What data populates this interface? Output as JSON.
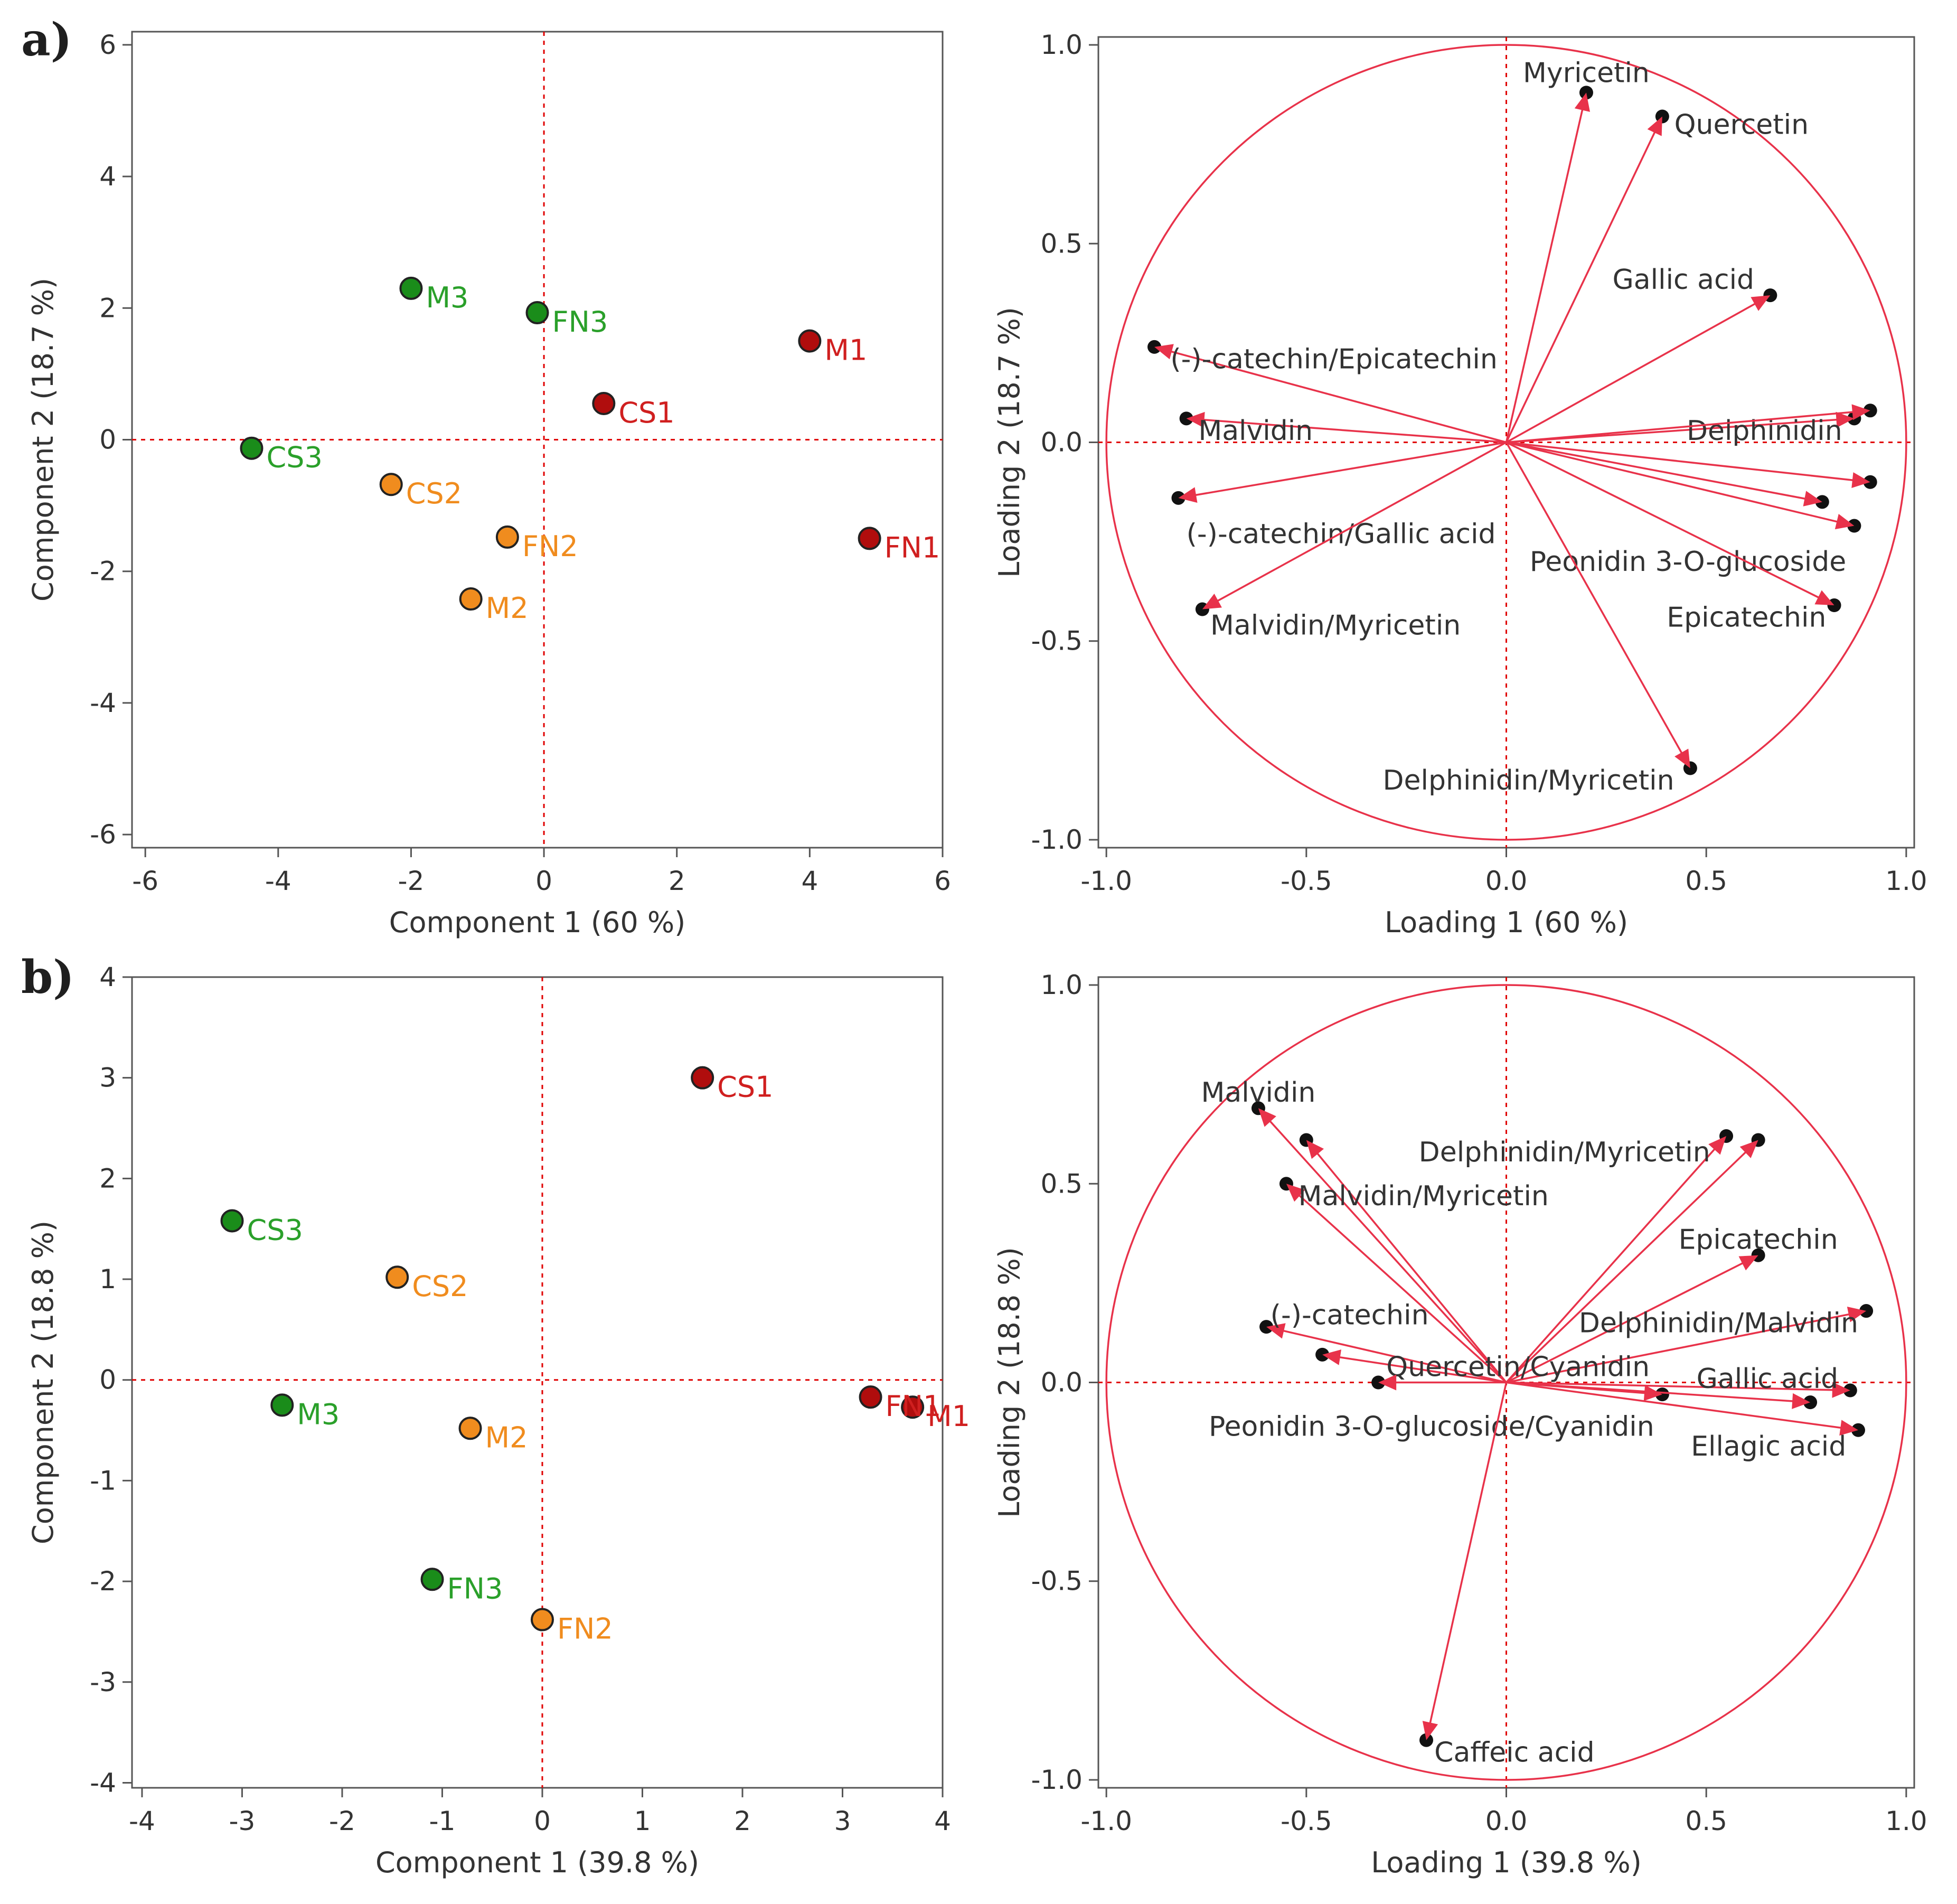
{
  "panels": [
    {
      "letter": "a)"
    },
    {
      "letter": "b)"
    }
  ],
  "colors": {
    "red": "#b00d0d",
    "orange": "#f08c1e",
    "green": "#1a8c1a",
    "red_label": "#d01f1f",
    "orange_label": "#f08c1e",
    "green_label": "#2aa02a",
    "arrow": "#e8324a",
    "axis": "#555555",
    "zero_line": "#e00000"
  },
  "chart_data": [
    {
      "id": "a-scores",
      "type": "scatter",
      "title": "",
      "xlabel": "Component 1  (60 %)",
      "ylabel": "Component 2  (18.7 %)",
      "xlim": [
        -6.2,
        6.0
      ],
      "ylim": [
        -6.2,
        6.2
      ],
      "xticks": [
        -6,
        -4,
        -2,
        0,
        2,
        4,
        6
      ],
      "yticks": [
        -6,
        -4,
        -2,
        0,
        2,
        4,
        6
      ],
      "tick_labels_x": [
        "-6",
        "-4",
        "-2",
        "0",
        "2",
        "4",
        "6"
      ],
      "tick_labels_y": [
        "-6",
        "-4",
        "-2",
        "0",
        "2",
        "4",
        "6"
      ],
      "points": [
        {
          "label": "M3",
          "x": -2.0,
          "y": 2.3,
          "color": "green"
        },
        {
          "label": "FN3",
          "x": -0.1,
          "y": 1.93,
          "color": "green"
        },
        {
          "label": "CS3",
          "x": -4.4,
          "y": -0.13,
          "color": "green"
        },
        {
          "label": "M1",
          "x": 4.0,
          "y": 1.5,
          "color": "red"
        },
        {
          "label": "CS1",
          "x": 0.9,
          "y": 0.55,
          "color": "red"
        },
        {
          "label": "FN1",
          "x": 4.9,
          "y": -1.5,
          "color": "red"
        },
        {
          "label": "CS2",
          "x": -2.3,
          "y": -0.68,
          "color": "orange"
        },
        {
          "label": "FN2",
          "x": -0.55,
          "y": -1.48,
          "color": "orange"
        },
        {
          "label": "M2",
          "x": -1.1,
          "y": -2.42,
          "color": "orange"
        }
      ]
    },
    {
      "id": "a-loadings",
      "type": "scatter",
      "title": "",
      "xlabel": "Loading 1  (60 %)",
      "ylabel": "Loading 2  (18.7 %)",
      "xlim": [
        -1.02,
        1.02
      ],
      "ylim": [
        -1.02,
        1.02
      ],
      "xticks": [
        -1.0,
        -0.5,
        0.0,
        0.5,
        1.0
      ],
      "yticks": [
        -1.0,
        -0.5,
        0.0,
        0.5,
        1.0
      ],
      "tick_labels_x": [
        "-1.0",
        "-0.5",
        "0.0",
        "0.5",
        "1.0"
      ],
      "tick_labels_y": [
        "-1.0",
        "-0.5",
        "0.0",
        "0.5",
        "1.0"
      ],
      "vectors": [
        {
          "label": "Myricetin",
          "x": 0.2,
          "y": 0.88,
          "lx": 0.2,
          "ly": 0.93,
          "anchor": "middle"
        },
        {
          "label": "Quercetin",
          "x": 0.39,
          "y": 0.82,
          "lx": 0.42,
          "ly": 0.8,
          "anchor": "start"
        },
        {
          "label": "Gallic acid",
          "x": 0.66,
          "y": 0.37,
          "lx": 0.62,
          "ly": 0.41,
          "anchor": "end"
        },
        {
          "label": "(-)-catechin/Epicatechin",
          "x": -0.88,
          "y": 0.24,
          "lx": -0.84,
          "ly": 0.21,
          "anchor": "start"
        },
        {
          "label": "Malvidin",
          "x": -0.8,
          "y": 0.06,
          "lx": -0.77,
          "ly": 0.03,
          "anchor": "start"
        },
        {
          "label": "Delphinidin",
          "x": 0.87,
          "y": 0.06,
          "lx": 0.84,
          "ly": 0.03,
          "anchor": "end"
        },
        {
          "label": "",
          "x": 0.91,
          "y": 0.08,
          "lx": 0,
          "ly": 0,
          "anchor": "start"
        },
        {
          "label": "",
          "x": 0.91,
          "y": -0.1,
          "lx": 0,
          "ly": 0,
          "anchor": "start"
        },
        {
          "label": "",
          "x": 0.79,
          "y": -0.15,
          "lx": 0,
          "ly": 0,
          "anchor": "start"
        },
        {
          "label": "Peonidin 3-O-glucoside",
          "x": 0.87,
          "y": -0.21,
          "lx": 0.85,
          "ly": -0.3,
          "anchor": "end"
        },
        {
          "label": "(-)-catechin/Gallic acid",
          "x": -0.82,
          "y": -0.14,
          "lx": -0.8,
          "ly": -0.23,
          "anchor": "start"
        },
        {
          "label": "Epicatechin",
          "x": 0.82,
          "y": -0.41,
          "lx": 0.8,
          "ly": -0.44,
          "anchor": "end"
        },
        {
          "label": "Malvidin/Myricetin",
          "x": -0.76,
          "y": -0.42,
          "lx": -0.74,
          "ly": -0.46,
          "anchor": "start"
        },
        {
          "label": "Delphinidin/Myricetin",
          "x": 0.46,
          "y": -0.82,
          "lx": 0.42,
          "ly": -0.85,
          "anchor": "end"
        }
      ]
    },
    {
      "id": "b-scores",
      "type": "scatter",
      "title": "",
      "xlabel": "Component 1  (39.8 %)",
      "ylabel": "Component 2  (18.8 %)",
      "xlim": [
        -4.1,
        4.0
      ],
      "ylim": [
        -4.05,
        4.0
      ],
      "xticks": [
        -4,
        -3,
        -2,
        -1,
        0,
        1,
        2,
        3,
        4
      ],
      "yticks": [
        -4,
        -3,
        -2,
        -1,
        0,
        1,
        2,
        3,
        4
      ],
      "tick_labels_x": [
        "-4",
        "-3",
        "-2",
        "-1",
        "0",
        "1",
        "2",
        "3",
        "4"
      ],
      "tick_labels_y": [
        "-4",
        "-3",
        "-2",
        "-1",
        "0",
        "1",
        "2",
        "3",
        "4"
      ],
      "points": [
        {
          "label": "CS1",
          "x": 1.6,
          "y": 3.0,
          "color": "red"
        },
        {
          "label": "M1",
          "x": 3.7,
          "y": -0.27,
          "color": "red"
        },
        {
          "label": "FN1",
          "x": 3.28,
          "y": -0.17,
          "color": "red"
        },
        {
          "label": "CS3",
          "x": -3.1,
          "y": 1.58,
          "color": "green"
        },
        {
          "label": "M3",
          "x": -2.6,
          "y": -0.25,
          "color": "green"
        },
        {
          "label": "FN3",
          "x": -1.1,
          "y": -1.98,
          "color": "green"
        },
        {
          "label": "CS2",
          "x": -1.45,
          "y": 1.02,
          "color": "orange"
        },
        {
          "label": "M2",
          "x": -0.72,
          "y": -0.48,
          "color": "orange"
        },
        {
          "label": "FN2",
          "x": 0.0,
          "y": -2.38,
          "color": "orange"
        }
      ]
    },
    {
      "id": "b-loadings",
      "type": "scatter",
      "title": "",
      "xlabel": "Loading 1  (39.8 %)",
      "ylabel": "Loading 2  (18.8 %)",
      "xlim": [
        -1.02,
        1.02
      ],
      "ylim": [
        -1.02,
        1.02
      ],
      "xticks": [
        -1.0,
        -0.5,
        0.0,
        0.5,
        1.0
      ],
      "yticks": [
        -1.0,
        -0.5,
        0.0,
        0.5,
        1.0
      ],
      "tick_labels_x": [
        "-1.0",
        "-0.5",
        "0.0",
        "0.5",
        "1.0"
      ],
      "tick_labels_y": [
        "-1.0",
        "-0.5",
        "0.0",
        "0.5",
        "1.0"
      ],
      "vectors": [
        {
          "label": "Malvidin",
          "x": -0.62,
          "y": 0.69,
          "lx": -0.62,
          "ly": 0.73,
          "anchor": "middle"
        },
        {
          "label": "",
          "x": -0.5,
          "y": 0.61,
          "lx": 0,
          "ly": 0,
          "anchor": "start"
        },
        {
          "label": "Malvidin/Myricetin",
          "x": -0.55,
          "y": 0.5,
          "lx": -0.52,
          "ly": 0.47,
          "anchor": "start"
        },
        {
          "label": "Delphinidin/Myricetin",
          "x": 0.55,
          "y": 0.62,
          "lx": 0.51,
          "ly": 0.58,
          "anchor": "end"
        },
        {
          "label": "",
          "x": 0.63,
          "y": 0.61,
          "lx": 0,
          "ly": 0,
          "anchor": "start"
        },
        {
          "label": "Epicatechin",
          "x": 0.63,
          "y": 0.32,
          "lx": 0.63,
          "ly": 0.36,
          "anchor": "middle"
        },
        {
          "label": "(-)-catechin",
          "x": -0.6,
          "y": 0.14,
          "lx": -0.59,
          "ly": 0.17,
          "anchor": "start"
        },
        {
          "label": "Delphinidin/Malvidin",
          "x": 0.9,
          "y": 0.18,
          "lx": 0.88,
          "ly": 0.15,
          "anchor": "end"
        },
        {
          "label": "Quercetin/Cyanidin",
          "x": -0.46,
          "y": 0.07,
          "lx": -0.3,
          "ly": 0.04,
          "anchor": "start"
        },
        {
          "label": "",
          "x": -0.32,
          "y": 0.0,
          "lx": 0,
          "ly": 0,
          "anchor": "start"
        },
        {
          "label": "Gallic acid",
          "x": 0.86,
          "y": -0.02,
          "lx": 0.83,
          "ly": 0.01,
          "anchor": "end"
        },
        {
          "label": "",
          "x": 0.39,
          "y": -0.03,
          "lx": 0,
          "ly": 0,
          "anchor": "start"
        },
        {
          "label": "",
          "x": 0.76,
          "y": -0.05,
          "lx": 0,
          "ly": 0,
          "anchor": "start"
        },
        {
          "label": "Peonidin 3-O-glucoside/Cyanidin",
          "x": 0.0,
          "y": 0.0,
          "lx": 0.37,
          "ly": -0.11,
          "anchor": "end"
        },
        {
          "label": "Ellagic acid",
          "x": 0.88,
          "y": -0.12,
          "lx": 0.85,
          "ly": -0.16,
          "anchor": "end"
        },
        {
          "label": "Caffeic acid",
          "x": -0.2,
          "y": -0.9,
          "lx": -0.18,
          "ly": -0.93,
          "anchor": "start"
        }
      ]
    }
  ]
}
